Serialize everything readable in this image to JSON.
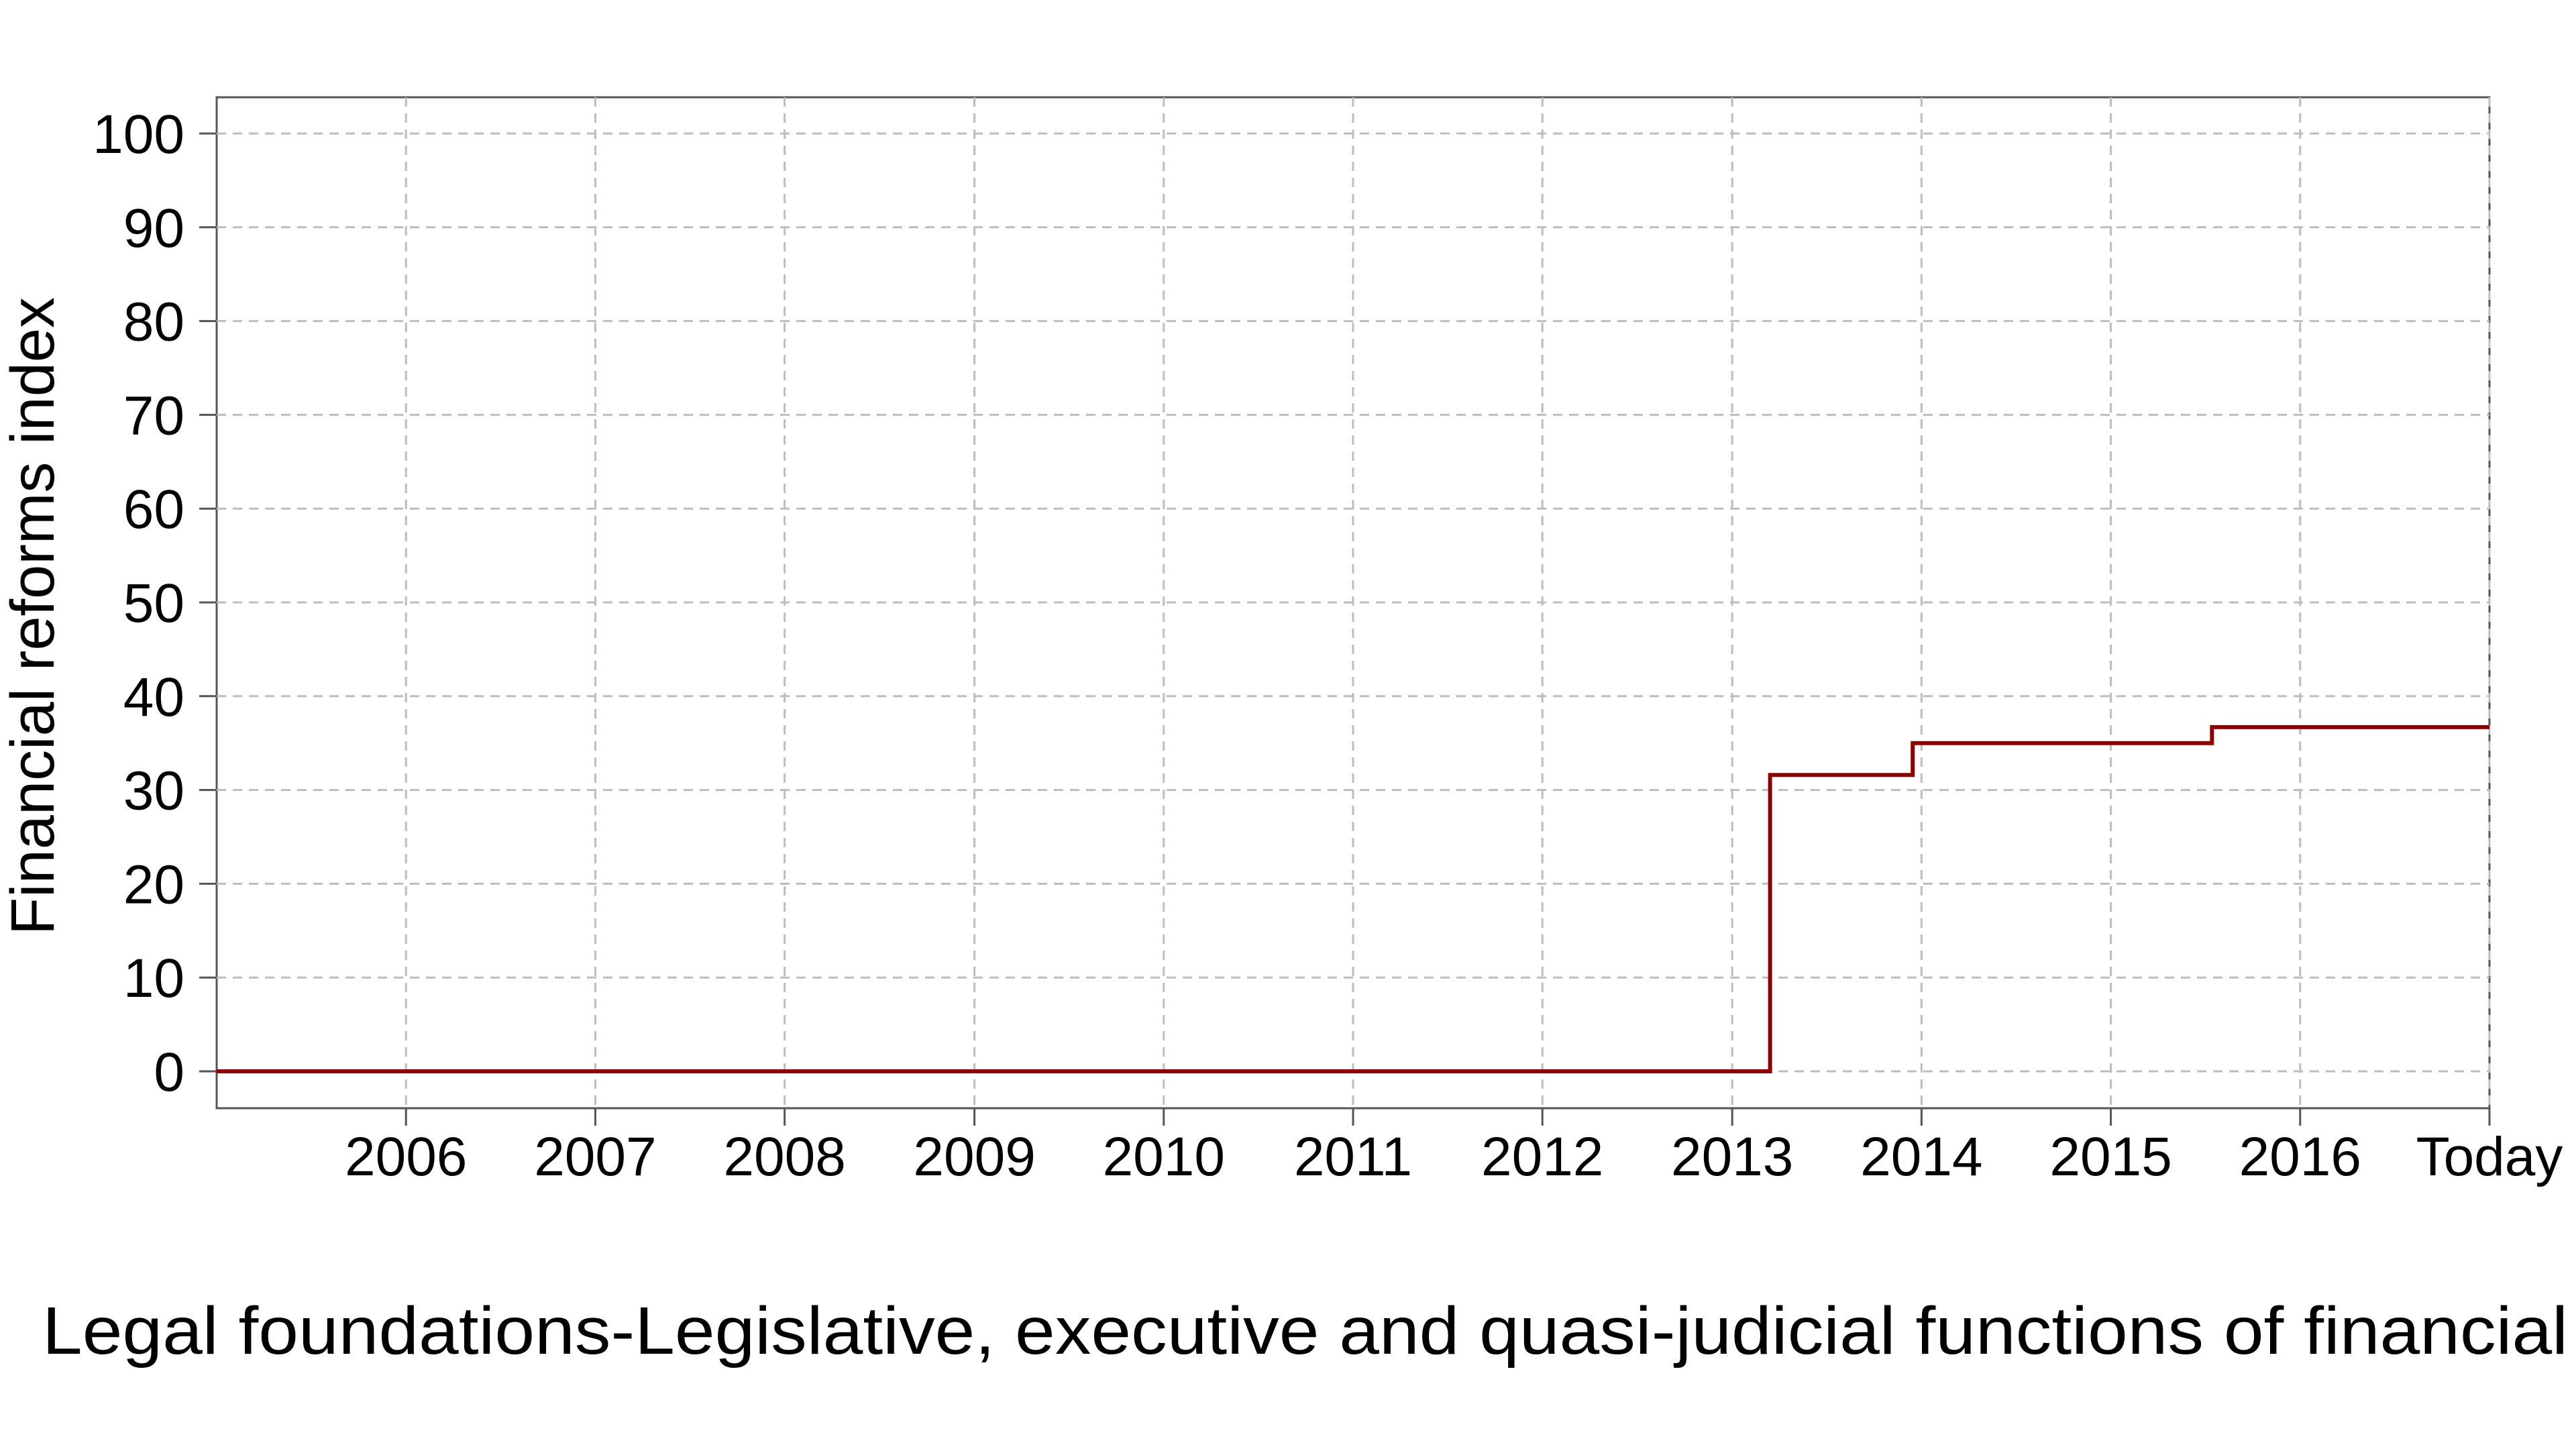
{
  "chart_data": {
    "type": "line",
    "step": true,
    "title": "",
    "caption": "Legal foundations-Legislative, executive and quasi-judicial functions of financial",
    "ylabel": "Financial reforms index",
    "xlabel": "",
    "ylim": [
      0,
      100
    ],
    "xlim": [
      "2005-01-01",
      "2016-12-31"
    ],
    "grid": true,
    "grid_style": "dashed",
    "y_ticks": [
      0,
      10,
      20,
      30,
      40,
      50,
      60,
      70,
      80,
      90,
      100
    ],
    "x_ticks": [
      {
        "label": "2006",
        "date": "2006-01-01"
      },
      {
        "label": "2007",
        "date": "2007-01-01"
      },
      {
        "label": "2008",
        "date": "2008-01-01"
      },
      {
        "label": "2009",
        "date": "2009-01-01"
      },
      {
        "label": "2010",
        "date": "2010-01-01"
      },
      {
        "label": "2011",
        "date": "2011-01-01"
      },
      {
        "label": "2012",
        "date": "2012-01-01"
      },
      {
        "label": "2013",
        "date": "2013-01-01"
      },
      {
        "label": "2014",
        "date": "2014-01-01"
      },
      {
        "label": "2015",
        "date": "2015-01-01"
      },
      {
        "label": "2016",
        "date": "2016-01-01"
      },
      {
        "label": "Today",
        "date": "2016-12-31"
      }
    ],
    "series": [
      {
        "color": "#8b0000",
        "points": [
          {
            "x": "2005-01-01",
            "y": 0
          },
          {
            "x": "2013-03-15",
            "y": 31.6
          },
          {
            "x": "2013-12-15",
            "y": 35
          },
          {
            "x": "2015-07-15",
            "y": 36.7
          },
          {
            "x": "2016-12-31",
            "y": 36.7
          }
        ]
      }
    ]
  }
}
